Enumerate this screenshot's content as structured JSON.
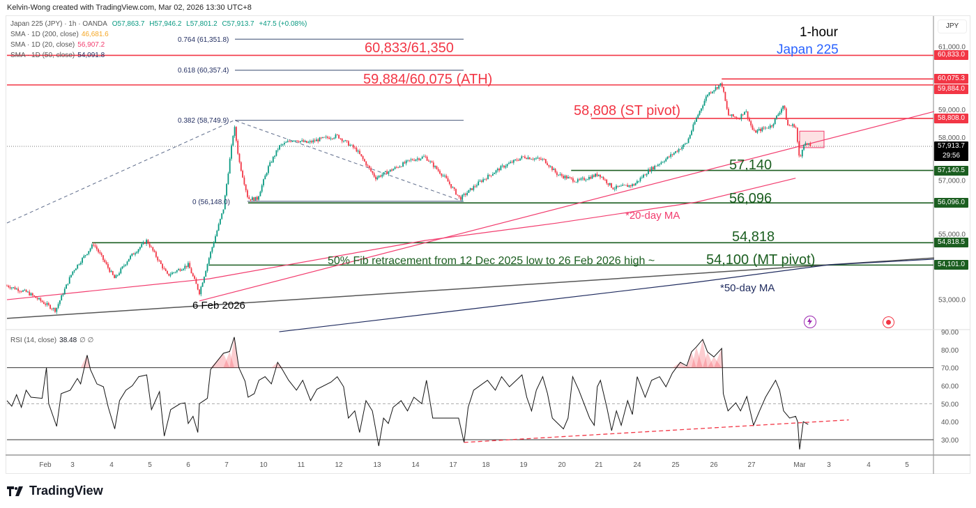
{
  "credit": "Kelvin-Wong created with TradingView.com, Mar 02, 2026 13:30 UTC+8",
  "legend": {
    "symbol": "Japan 225 (JPY) · 1h · OANDA",
    "o": "O57,863.7",
    "h": "H57,946.2",
    "l": "L57,801.2",
    "c": "C57,913.7",
    "chg": "+47.5 (+0.08%)",
    "sma200": {
      "label": "SMA · 1D (200, close)",
      "value": "46,681.6",
      "color": "#f5a623"
    },
    "sma20": {
      "label": "SMA · 1D (20, close)",
      "value": "56,907.2",
      "color": "#f23c6e"
    },
    "sma50": {
      "label": "SMA · 1D (50, close)",
      "value": "54,091.8",
      "color": "#1e2a5e"
    }
  },
  "currency": "JPY",
  "rsi_legend": {
    "label": "RSI (14, close)",
    "value": "38.48",
    "extra": "∅ ∅"
  },
  "annotations": {
    "timeframe": "1-hour",
    "instrument": "Japan 225",
    "r1": "60,833/61,350",
    "ath": "59,884/60,075 (ATH)",
    "st_pivot": "58,808 (ST pivot)",
    "s1": "57,140",
    "s2": "56,096",
    "s3": "54,818",
    "fib_note": "50% Fib retracement from 12 Dec 2025 low to 26 Feb 2026 high ~",
    "mt_pivot": "54,100 (MT pivot)",
    "ma20": "*20-day MA",
    "ma50": "*50-day MA",
    "low_date": "6 Feb 2026"
  },
  "fib_labels": [
    "0.764 (61,351.8)",
    "0.618 (60,357.4)",
    "0.382 (58,749.9)",
    "0 (56,148.0)"
  ],
  "price_tags": [
    {
      "text": "60,833.0",
      "value": 60833,
      "color": "#f23645"
    },
    {
      "text": "60,075.3",
      "value": 60075.3,
      "color": "#f23645"
    },
    {
      "text": "59,884.0",
      "value": 59884,
      "color": "#f23645"
    },
    {
      "text": "58,808.0",
      "value": 58808,
      "color": "#f23645"
    },
    {
      "text": "57,913.7",
      "value": 57913.7,
      "color": "#000000",
      "countdown": "29:56"
    },
    {
      "text": "57,140.5",
      "value": 57140.5,
      "color": "#1b5e20"
    },
    {
      "text": "56,096.0",
      "value": 56096,
      "color": "#1b5e20"
    },
    {
      "text": "54,818.5",
      "value": 54818.5,
      "color": "#1b5e20"
    },
    {
      "text": "54,101.0",
      "value": 54101,
      "color": "#1b5e20"
    }
  ],
  "brand": "TradingView",
  "icons": [
    "lightning-icon",
    "target-icon"
  ],
  "chart_data": [
    {
      "type": "candlestick",
      "pane": "price",
      "yaxis_ticks": [
        "61,000.0",
        "59,000.0",
        "58,000.0",
        "57,000.0",
        "55,000.0",
        "53,000.0"
      ],
      "yaxis_values": [
        61000,
        59000,
        58000,
        57000,
        55000,
        53000
      ],
      "xaxis_ticks": [
        "Feb",
        "3",
        "4",
        "5",
        "6",
        "7",
        "10",
        "11",
        "12",
        "13",
        "14",
        "17",
        "18",
        "19",
        "20",
        "21",
        "24",
        "25",
        "26",
        "27",
        "Mar",
        "3",
        "4",
        "5"
      ],
      "up_color": "#089981",
      "down_color": "#f23645",
      "close_path": [
        [
          "01-30 00",
          53440
        ],
        [
          "01-30 13",
          53215
        ],
        [
          "02-02 09",
          52650
        ],
        [
          "02-03 00",
          53890
        ],
        [
          "02-03 13",
          54780
        ],
        [
          "02-04 02",
          53660
        ],
        [
          "02-04 11",
          54330
        ],
        [
          "02-04 22",
          54890
        ],
        [
          "02-05 11",
          53770
        ],
        [
          "02-06 00",
          54110
        ],
        [
          "02-06 07",
          53215
        ],
        [
          "02-06 13",
          54330
        ],
        [
          "02-06 22",
          55900
        ],
        [
          "02-07 05",
          58580
        ],
        [
          "02-07 08",
          57470
        ],
        [
          "02-07 14",
          56230
        ],
        [
          "02-07 20",
          56230
        ],
        [
          "02-10 03",
          57240
        ],
        [
          "02-10 10",
          57910
        ],
        [
          "02-10 19",
          58140
        ],
        [
          "02-11 04",
          58020
        ],
        [
          "02-11 12",
          58140
        ],
        [
          "02-11 23",
          58250
        ],
        [
          "02-12 11",
          57800
        ],
        [
          "02-12 23",
          56900
        ],
        [
          "02-13 08",
          57130
        ],
        [
          "02-13 21",
          57470
        ],
        [
          "02-14 06",
          57580
        ],
        [
          "02-14 19",
          56900
        ],
        [
          "02-17 05",
          56230
        ],
        [
          "02-17 20",
          56790
        ],
        [
          "02-18 10",
          57240
        ],
        [
          "02-19 00",
          57580
        ],
        [
          "02-19 13",
          57470
        ],
        [
          "02-19 21",
          57020
        ],
        [
          "02-20 10",
          56790
        ],
        [
          "02-21 00",
          57020
        ],
        [
          "02-21 09",
          56570
        ],
        [
          "02-21 22",
          56680
        ],
        [
          "02-24 07",
          57130
        ],
        [
          "02-24 20",
          57580
        ],
        [
          "02-25 07",
          58020
        ],
        [
          "02-25 13",
          58810
        ],
        [
          "02-25 20",
          59590
        ],
        [
          "02-26 05",
          59930
        ],
        [
          "02-26 09",
          58920
        ],
        [
          "02-26 16",
          58810
        ],
        [
          "02-26 20",
          59080
        ],
        [
          "02-27 01",
          58360
        ],
        [
          "02-27 10",
          58580
        ],
        [
          "02-27 16",
          59250
        ],
        [
          "02-27 18",
          58580
        ],
        [
          "02-27 22",
          58580
        ],
        [
          "03-02 00",
          57420
        ],
        [
          "03-02 03",
          58020
        ],
        [
          "03-02 09",
          57914
        ]
      ],
      "fib_levels": [
        {
          "ratio": 0.764,
          "value": 61351.8
        },
        {
          "ratio": 0.618,
          "value": 60357.4
        },
        {
          "ratio": 0.382,
          "value": 58749.9
        },
        {
          "ratio": 0,
          "value": 56148.0
        }
      ],
      "levels": [
        {
          "value": 60833,
          "color": "#f23645",
          "from": "01-30 00"
        },
        {
          "value": 59884,
          "color": "#f23645",
          "from": "01-30 00"
        },
        {
          "value": 60075.3,
          "color": "#f23645",
          "from": "02-26 05"
        },
        {
          "value": 58808,
          "color": "#f23645",
          "from": "02-20 19"
        },
        {
          "value": 57140.5,
          "color": "#1b5e20",
          "from": "02-20 06"
        },
        {
          "value": 56096,
          "color": "#1b5e20",
          "from": "02-07 14"
        },
        {
          "value": 54818.5,
          "color": "#1b5e20",
          "from": "02-03 12"
        },
        {
          "value": 54101,
          "color": "#1b5e20",
          "from": "02-06 13"
        }
      ],
      "fib_trend": [
        [
          "01-30 00",
          55452
        ],
        [
          "02-07 05",
          58750
        ],
        [
          "02-17 07",
          56148
        ]
      ],
      "trendline": [
        [
          "02-06 07",
          52950
        ],
        [
          "03-05 17",
          59030
        ]
      ],
      "ma20": [
        [
          "01-30 00",
          52990
        ],
        [
          "02-06 13",
          53660
        ],
        [
          "02-14 06",
          54890
        ],
        [
          "02-19 21",
          55450
        ],
        [
          "02-25 13",
          56120
        ],
        [
          "02-27 22",
          56890
        ]
      ],
      "ma50": [
        [
          "02-10 10",
          51960
        ],
        [
          "02-25 13",
          53550
        ],
        [
          "03-02 24",
          54110
        ],
        [
          "03-05 17",
          54290
        ]
      ],
      "long_trend": [
        [
          "01-30 00",
          52390
        ],
        [
          "03-05 17",
          54330
        ]
      ],
      "box": {
        "from": "03-02 00",
        "to": "03-02 20",
        "high": 58400,
        "low": 57870
      }
    },
    {
      "type": "line",
      "pane": "rsi",
      "name": "RSI (14, close)",
      "ylim": [
        20,
        90
      ],
      "yaxis_ticks": [
        "90.00",
        "80.00",
        "70.00",
        "60.00",
        "50.00",
        "40.00",
        "30.00"
      ],
      "bands": [
        70,
        50,
        30
      ],
      "points": [
        [
          "01-30 00",
          51.7
        ],
        [
          "01-30 03",
          48.6
        ],
        [
          "01-30 06",
          55
        ],
        [
          "01-30 09",
          48
        ],
        [
          "01-30 12",
          57.5
        ],
        [
          "01-30 15",
          53.6
        ],
        [
          "01-30 22",
          53
        ],
        [
          "02-02 01",
          70
        ],
        [
          "02-02 03",
          50
        ],
        [
          "02-02 10",
          37.4
        ],
        [
          "02-02 14",
          55.6
        ],
        [
          "02-02 22",
          57.5
        ],
        [
          "02-03 03",
          64
        ],
        [
          "02-03 05",
          61
        ],
        [
          "02-03 09",
          77
        ],
        [
          "02-03 11",
          69
        ],
        [
          "02-03 15",
          61
        ],
        [
          "02-03 19",
          59.4
        ],
        [
          "02-03 22",
          48
        ],
        [
          "02-04 02",
          36
        ],
        [
          "02-04 05",
          51.7
        ],
        [
          "02-04 09",
          57.5
        ],
        [
          "02-04 13",
          60
        ],
        [
          "02-04 17",
          65
        ],
        [
          "02-04 22",
          66
        ],
        [
          "02-05 01",
          46.7
        ],
        [
          "02-05 06",
          56.7
        ],
        [
          "02-05 09",
          32
        ],
        [
          "02-05 13",
          46.7
        ],
        [
          "02-05 19",
          50
        ],
        [
          "02-05 22",
          50.5
        ],
        [
          "02-06 00",
          39
        ],
        [
          "02-06 03",
          43
        ],
        [
          "02-06 06",
          34
        ],
        [
          "02-06 07",
          50
        ],
        [
          "02-06 12",
          53
        ],
        [
          "02-06 14",
          69
        ],
        [
          "02-06 22",
          78
        ],
        [
          "02-07 02",
          79
        ],
        [
          "02-07 05",
          87
        ],
        [
          "02-07 08",
          70
        ],
        [
          "02-07 12",
          62.5
        ],
        [
          "02-07 14",
          53.6
        ],
        [
          "02-07 18",
          55.6
        ],
        [
          "02-07 21",
          63
        ],
        [
          "02-10 01",
          65
        ],
        [
          "02-10 05",
          61
        ],
        [
          "02-10 09",
          73
        ],
        [
          "02-10 12",
          69
        ],
        [
          "02-10 16",
          63
        ],
        [
          "02-10 21",
          57.5
        ],
        [
          "02-11 01",
          63
        ],
        [
          "02-11 06",
          51.7
        ],
        [
          "02-11 10",
          58
        ],
        [
          "02-11 19",
          62
        ],
        [
          "02-11 23",
          65
        ],
        [
          "02-12 03",
          59.4
        ],
        [
          "02-12 06",
          42
        ],
        [
          "02-12 10",
          46
        ],
        [
          "02-12 13",
          34
        ],
        [
          "02-12 17",
          51.7
        ],
        [
          "02-12 21",
          46
        ],
        [
          "02-13 01",
          26.5
        ],
        [
          "02-13 04",
          42
        ],
        [
          "02-13 07",
          39
        ],
        [
          "02-13 10",
          48
        ],
        [
          "02-13 15",
          51.7
        ],
        [
          "02-13 19",
          46
        ],
        [
          "02-13 23",
          53.6
        ],
        [
          "02-14 04",
          50
        ],
        [
          "02-14 07",
          63
        ],
        [
          "02-14 11",
          42
        ],
        [
          "02-14 20",
          42
        ],
        [
          "02-17 04",
          42
        ],
        [
          "02-17 08",
          28.5
        ],
        [
          "02-17 11",
          48
        ],
        [
          "02-17 15",
          57.5
        ],
        [
          "02-18 01",
          63
        ],
        [
          "02-18 06",
          57.5
        ],
        [
          "02-18 10",
          65
        ],
        [
          "02-18 15",
          59.4
        ],
        [
          "02-18 23",
          66
        ],
        [
          "02-19 02",
          53.6
        ],
        [
          "02-19 05",
          46
        ],
        [
          "02-19 08",
          57.5
        ],
        [
          "02-19 12",
          65
        ],
        [
          "02-19 15",
          55.6
        ],
        [
          "02-19 18",
          42
        ],
        [
          "02-20 01",
          36
        ],
        [
          "02-20 04",
          42
        ],
        [
          "02-20 07",
          65
        ],
        [
          "02-20 11",
          57.5
        ],
        [
          "02-20 18",
          42
        ],
        [
          "02-20 21",
          38
        ],
        [
          "02-20 23",
          59.4
        ],
        [
          "02-21 01",
          63
        ],
        [
          "02-21 05",
          48
        ],
        [
          "02-21 08",
          35
        ],
        [
          "02-21 11",
          46
        ],
        [
          "02-21 14",
          38
        ],
        [
          "02-21 18",
          51.7
        ],
        [
          "02-21 21",
          44
        ],
        [
          "02-24 00",
          65
        ],
        [
          "02-24 05",
          53.6
        ],
        [
          "02-24 09",
          63
        ],
        [
          "02-24 14",
          65
        ],
        [
          "02-24 18",
          59.4
        ],
        [
          "02-24 22",
          67
        ],
        [
          "02-25 03",
          73
        ],
        [
          "02-25 07",
          71
        ],
        [
          "02-25 10",
          78.8
        ],
        [
          "02-25 13",
          81.5
        ],
        [
          "02-25 17",
          85.7
        ],
        [
          "02-25 20",
          78.8
        ],
        [
          "02-26 00",
          76
        ],
        [
          "02-26 05",
          80.7
        ],
        [
          "02-26 06",
          55.6
        ],
        [
          "02-26 09",
          46
        ],
        [
          "02-26 14",
          50.5
        ],
        [
          "02-26 17",
          46
        ],
        [
          "02-26 21",
          54
        ],
        [
          "02-27 01",
          38
        ],
        [
          "02-27 04",
          46
        ],
        [
          "02-27 07",
          53.6
        ],
        [
          "02-27 12",
          63
        ],
        [
          "02-27 14",
          57.5
        ],
        [
          "02-27 16",
          46
        ],
        [
          "02-27 19",
          42
        ],
        [
          "02-27 22",
          43
        ],
        [
          "02-27 23",
          40
        ],
        [
          "03-02 00",
          24.6
        ],
        [
          "03-02 03",
          40
        ],
        [
          "03-02 07",
          38.5
        ]
      ],
      "support_trend": [
        [
          "02-17 08",
          28.5
        ],
        [
          "03-03 12",
          41
        ]
      ]
    }
  ]
}
